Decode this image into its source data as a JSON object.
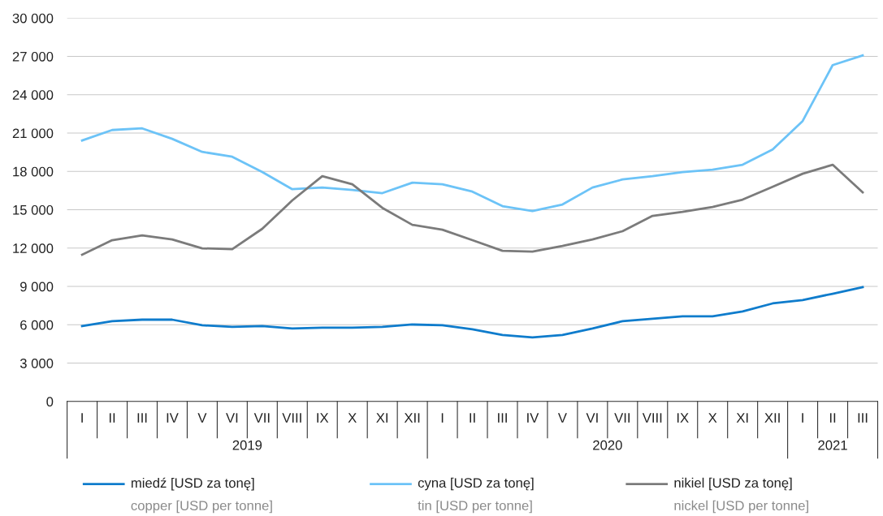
{
  "chart_data": {
    "type": "line",
    "categories": [
      "I",
      "II",
      "III",
      "IV",
      "V",
      "VI",
      "VII",
      "VIII",
      "IX",
      "X",
      "XI",
      "XII",
      "I",
      "II",
      "III",
      "IV",
      "V",
      "VI",
      "VII",
      "VIII",
      "IX",
      "X",
      "XI",
      "XII",
      "I",
      "II",
      "III"
    ],
    "annotations": [
      "2019",
      "2020",
      "2021"
    ],
    "ylim": [
      0,
      30000
    ],
    "yticks": [
      {
        "value": 0,
        "label": "0"
      },
      {
        "value": 3000,
        "label": "3 000"
      },
      {
        "value": 6000,
        "label": "6 000"
      },
      {
        "value": 9000,
        "label": "9 000"
      },
      {
        "value": 12000,
        "label": "12 000"
      },
      {
        "value": 15000,
        "label": "15 000"
      },
      {
        "value": 18000,
        "label": "18 000"
      },
      {
        "value": 21000,
        "label": "21 000"
      },
      {
        "value": 24000,
        "label": "24 000"
      },
      {
        "value": 27000,
        "label": "27 000"
      },
      {
        "value": 30000,
        "label": "30 000"
      }
    ],
    "grid": "y",
    "legend": "bottom",
    "marker": "none",
    "line_style": "solid",
    "series": [
      {
        "name": "miedź [USD za tonę]\ncopper [USD per tonne]",
        "color": "#0f7ccc",
        "values": [
          5900,
          6280,
          6400,
          6400,
          5960,
          5830,
          5900,
          5710,
          5770,
          5770,
          5830,
          6020,
          5960,
          5640,
          5200,
          5010,
          5200,
          5710,
          6280,
          6470,
          6660,
          6660,
          7040,
          7670,
          7930,
          8430,
          8940
        ]
      },
      {
        "name": "cyna [USD za tonę]\ntin [USD per tonne]",
        "color": "#6cc3f7",
        "values": [
          20420,
          21240,
          21370,
          20550,
          19530,
          19150,
          17950,
          16610,
          16740,
          16550,
          16300,
          17120,
          16990,
          16420,
          15280,
          14900,
          15410,
          16740,
          17370,
          17630,
          17950,
          18140,
          18520,
          19720,
          21940,
          26320,
          27080
        ]
      },
      {
        "name": "nikiel [USD za tonę]\nnickel [USD per tonne]",
        "color": "#7b7b7b",
        "values": [
          11480,
          12620,
          13000,
          12680,
          11980,
          11920,
          13510,
          15730,
          17630,
          16990,
          15150,
          13820,
          13440,
          12620,
          11790,
          11730,
          12170,
          12680,
          13320,
          14520,
          14840,
          15220,
          15790,
          16800,
          17820,
          18520,
          16360
        ]
      }
    ]
  }
}
